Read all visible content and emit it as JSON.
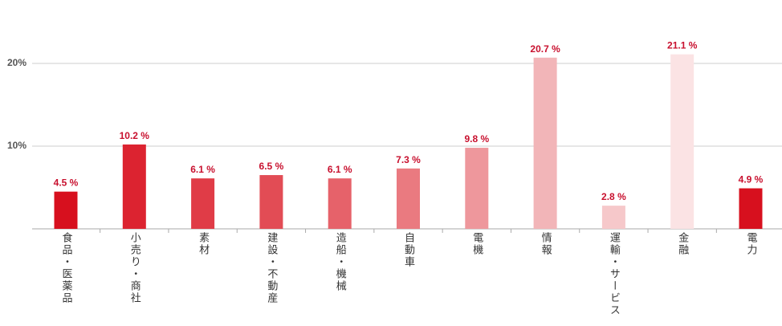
{
  "chart_data": {
    "type": "bar",
    "categories": [
      "食品・医薬品",
      "小売り・商社",
      "素材",
      "建設・不動産",
      "造船・機械",
      "自動車",
      "電機",
      "情報",
      "運輸・サービス",
      "金融",
      "電力"
    ],
    "values": [
      4.5,
      10.2,
      6.1,
      6.5,
      6.1,
      7.3,
      9.8,
      20.7,
      2.8,
      21.1,
      4.9
    ],
    "value_labels": [
      "4.5 %",
      "10.2 %",
      "6.1 %",
      "6.5 %",
      "6.1 %",
      "7.3 %",
      "9.8 %",
      "20.7 %",
      "2.8 %",
      "21.1 %",
      "4.9 %"
    ],
    "colors": [
      "#d7101e",
      "#dc2330",
      "#e03c47",
      "#e24c55",
      "#e6626a",
      "#ea7a80",
      "#ee979c",
      "#f2b5b8",
      "#f6c8ca",
      "#fbe3e4",
      "#d7101e"
    ],
    "ylim": [
      0,
      25
    ],
    "yticks": [
      {
        "value": 10,
        "label": "10%"
      },
      {
        "value": 20,
        "label": "20%"
      }
    ],
    "grid": true
  }
}
